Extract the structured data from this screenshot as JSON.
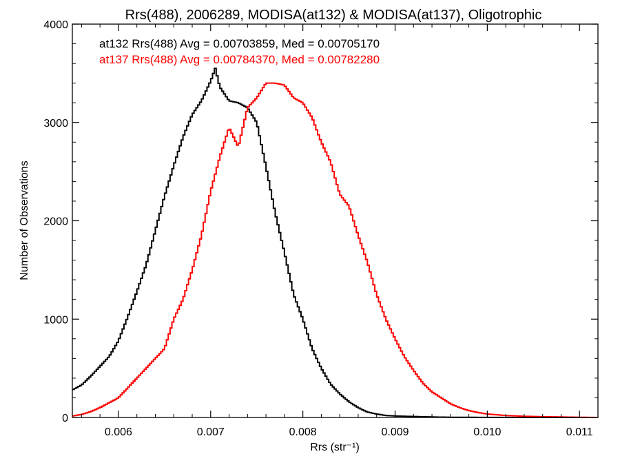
{
  "chart_data": {
    "type": "line",
    "title": "Rrs(488), 2006289, MODISA(at132) & MODISA(at137), Oligotrophic",
    "xlabel": "Rrs (str⁻¹)",
    "ylabel": "Number of Observations",
    "xlim": [
      0.0055,
      0.0112
    ],
    "ylim": [
      0,
      4000
    ],
    "xticks": [
      0.006,
      0.007,
      0.008,
      0.009,
      0.01,
      0.011
    ],
    "xtick_labels": [
      "0.006",
      "0.007",
      "0.008",
      "0.009",
      "0.010",
      "0.011"
    ],
    "yticks": [
      0,
      1000,
      2000,
      3000,
      4000
    ],
    "ytick_labels": [
      "0",
      "1000",
      "2000",
      "3000",
      "4000"
    ],
    "grid": false,
    "annotations": [
      {
        "text": "at132 Rrs(488) Avg = 0.00703859, Med = 0.00705170",
        "color": "#000000"
      },
      {
        "text": "at137 Rrs(488) Avg = 0.00784370, Med = 0.00782280",
        "color": "#ff0000"
      }
    ],
    "series": [
      {
        "color": "#000000",
        "x": [
          0.0055,
          0.0056,
          0.0057,
          0.0058,
          0.0059,
          0.006,
          0.0061,
          0.0062,
          0.0063,
          0.0064,
          0.0065,
          0.0066,
          0.0067,
          0.0068,
          0.0069,
          0.007,
          0.00705,
          0.0071,
          0.0072,
          0.0073,
          0.0074,
          0.0075,
          0.0076,
          0.0077,
          0.0078,
          0.0079,
          0.008,
          0.0081,
          0.0082,
          0.0083,
          0.0084,
          0.0085,
          0.0086,
          0.0087,
          0.0088,
          0.0089,
          0.009,
          0.0092,
          0.0094,
          0.0096,
          0.01,
          0.0105,
          0.0112
        ],
        "y": [
          280,
          330,
          420,
          520,
          620,
          780,
          1020,
          1280,
          1550,
          1900,
          2250,
          2560,
          2850,
          3080,
          3220,
          3420,
          3550,
          3360,
          3220,
          3200,
          3150,
          3000,
          2550,
          2080,
          1680,
          1250,
          1000,
          700,
          500,
          340,
          240,
          160,
          100,
          55,
          35,
          20,
          15,
          10,
          5,
          2,
          1,
          0,
          0
        ]
      },
      {
        "color": "#ff0000",
        "x": [
          0.0055,
          0.0056,
          0.0057,
          0.0058,
          0.0059,
          0.006,
          0.0061,
          0.0062,
          0.0063,
          0.0064,
          0.0065,
          0.0066,
          0.0067,
          0.0068,
          0.0069,
          0.007,
          0.0071,
          0.0072,
          0.0073,
          0.0074,
          0.0075,
          0.0076,
          0.0077,
          0.0078,
          0.0079,
          0.008,
          0.0081,
          0.0082,
          0.0083,
          0.0084,
          0.0085,
          0.0086,
          0.0087,
          0.0088,
          0.0089,
          0.009,
          0.0091,
          0.0092,
          0.0093,
          0.0094,
          0.0095,
          0.0096,
          0.0097,
          0.0098,
          0.0099,
          0.01,
          0.0102,
          0.0104,
          0.0106,
          0.0108,
          0.011,
          0.0112
        ],
        "y": [
          15,
          30,
          60,
          100,
          150,
          200,
          300,
          400,
          500,
          600,
          700,
          1000,
          1200,
          1500,
          1850,
          2300,
          2650,
          2950,
          2750,
          3150,
          3250,
          3400,
          3400,
          3380,
          3250,
          3200,
          3050,
          2800,
          2600,
          2270,
          2150,
          1850,
          1580,
          1250,
          1000,
          800,
          620,
          480,
          350,
          260,
          200,
          140,
          100,
          70,
          50,
          35,
          20,
          12,
          8,
          5,
          2,
          0
        ]
      }
    ]
  }
}
